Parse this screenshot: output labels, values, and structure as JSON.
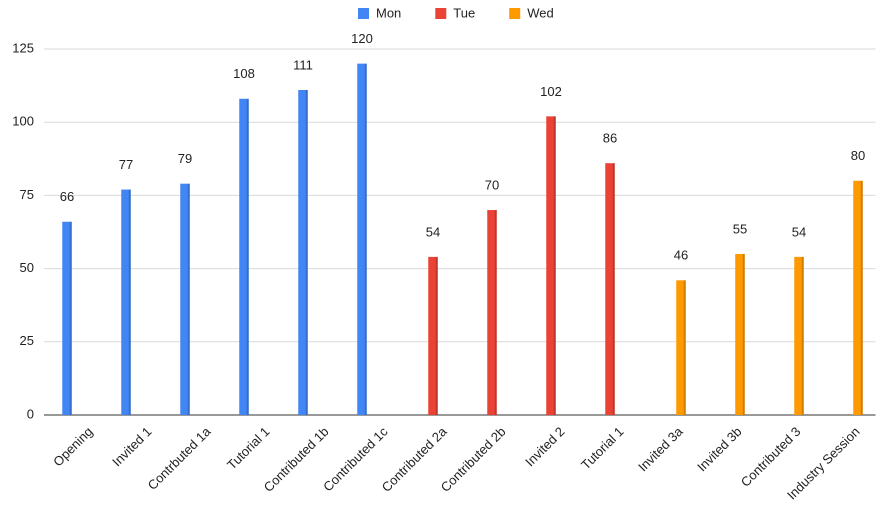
{
  "chart_data": {
    "type": "bar",
    "categories": [
      "Opening",
      "Invited 1",
      "Contrbuted 1a",
      "Tutorial 1",
      "Contributed 1b",
      "Contributed 1c",
      "Contributed 2a",
      "Contributed 2b",
      "Invited 2",
      "Tutorial 1",
      "Invited 3a",
      "Invited 3b",
      "Contributed 3",
      "Industry Session"
    ],
    "series": [
      {
        "name": "Mon",
        "color": "#4285f4",
        "values": [
          66,
          77,
          79,
          108,
          111,
          120,
          null,
          null,
          null,
          null,
          null,
          null,
          null,
          null
        ]
      },
      {
        "name": "Tue",
        "color": "#ea4335",
        "values": [
          null,
          null,
          null,
          null,
          null,
          null,
          54,
          70,
          102,
          86,
          null,
          null,
          null,
          null
        ]
      },
      {
        "name": "Wed",
        "color": "#ff9900",
        "values": [
          null,
          null,
          null,
          null,
          null,
          null,
          null,
          null,
          null,
          null,
          46,
          55,
          54,
          80
        ]
      }
    ],
    "ylim": [
      0,
      125
    ],
    "yticks": [
      0,
      25,
      50,
      75,
      100,
      125
    ],
    "grid": true,
    "legend": "top"
  }
}
